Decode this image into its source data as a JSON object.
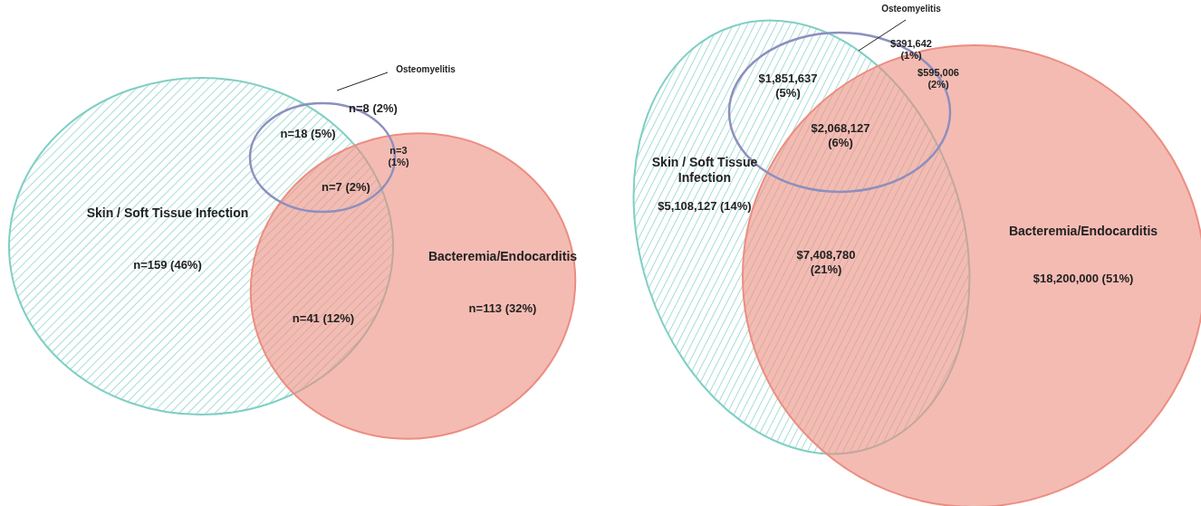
{
  "chart_data": [
    {
      "type": "other",
      "categories": [
        "Skin / Soft Tissue Infection",
        "Bacteremia/Endocarditis",
        "Osteomyelitis"
      ],
      "colors": [
        "#7fcfc4",
        "#ec8d80",
        "#8d8fbf"
      ],
      "values": [
        159,
        113,
        8
      ],
      "value_labels": [
        "n=159 (46%)",
        "n=113 (32%)",
        "n=8 (2%)"
      ],
      "annotations": [
        "n=18 (5%)",
        "n=41 (12%)",
        "n=3 (1%)",
        "n=7 (2%)"
      ]
    },
    {
      "type": "other",
      "categories": [
        "Skin / Soft Tissue Infection",
        "Bacteremia/Endocarditis",
        "Osteomyelitis"
      ],
      "colors": [
        "#7fcfc4",
        "#ec8d80",
        "#8d8fbf"
      ],
      "values": [
        5108127,
        18200000,
        391642
      ],
      "value_labels": [
        "$5,108,127 (14%)",
        "$18,200,000 (51%)",
        "$391,642 (1%)"
      ],
      "annotations": [
        "$1,851,637 (5%)",
        "$7,408,780 (21%)",
        "$595,006 (2%)",
        "$2,068,127 (6%)"
      ]
    }
  ]
}
